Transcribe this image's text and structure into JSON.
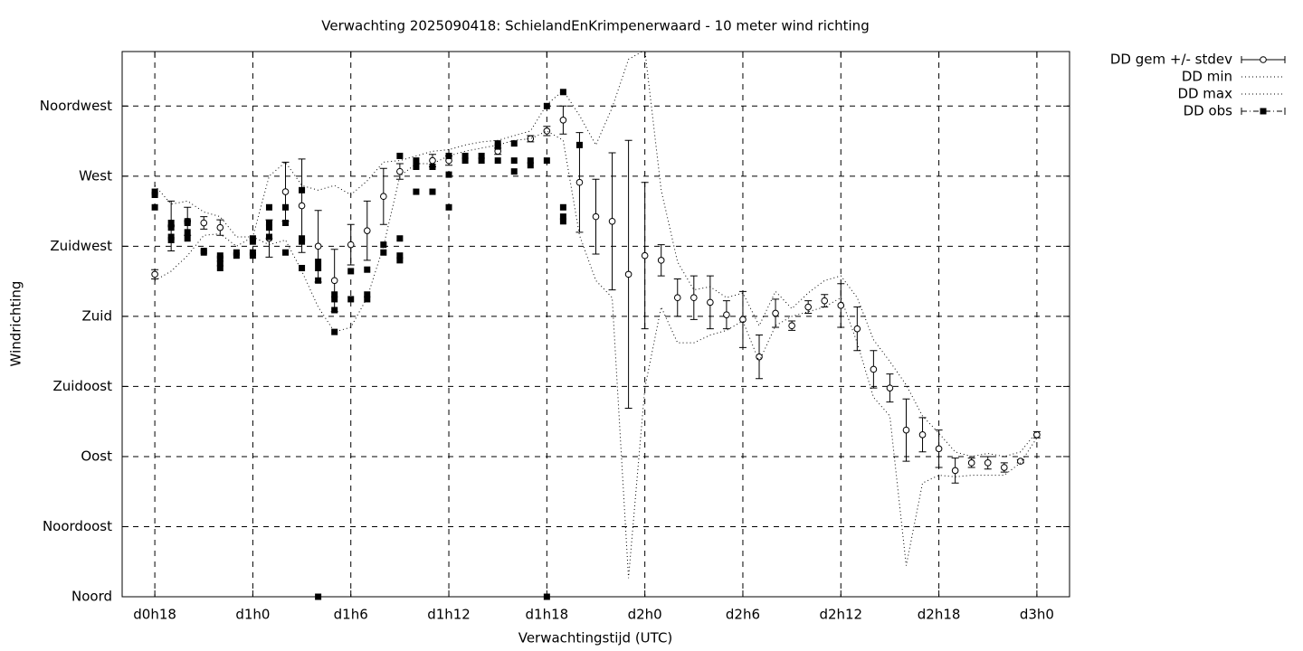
{
  "chart_data": {
    "type": "errorbar",
    "title": "Verwachting 2025090418: SchielandEnKrimpenerwaard - 10 meter wind richting",
    "xlabel": "Verwachtingstijd (UTC)",
    "ylabel": "Windrichting",
    "xlim": [
      16,
      74
    ],
    "xticks": [
      {
        "value": 18,
        "label": "d0h18"
      },
      {
        "value": 24,
        "label": "d1h0"
      },
      {
        "value": 30,
        "label": "d1h6"
      },
      {
        "value": 36,
        "label": "d1h12"
      },
      {
        "value": 42,
        "label": "d1h18"
      },
      {
        "value": 48,
        "label": "d2h0"
      },
      {
        "value": 54,
        "label": "d2h6"
      },
      {
        "value": 60,
        "label": "d2h12"
      },
      {
        "value": 66,
        "label": "d2h18"
      },
      {
        "value": 72,
        "label": "d3h0"
      }
    ],
    "ylim": [
      0,
      350
    ],
    "yticks": [
      {
        "value": 0,
        "label": "Noord"
      },
      {
        "value": 45,
        "label": "Noordoost"
      },
      {
        "value": 90,
        "label": "Oost"
      },
      {
        "value": 135,
        "label": "Zuidoost"
      },
      {
        "value": 180,
        "label": "Zuid"
      },
      {
        "value": 225,
        "label": "Zuidwest"
      },
      {
        "value": 270,
        "label": "West"
      },
      {
        "value": 315,
        "label": "Noordwest"
      }
    ],
    "grid": true,
    "series": [
      {
        "name": "DD gem +/- stdev",
        "style": "errorbar",
        "color": "#000000",
        "x": [
          18,
          19,
          20,
          21,
          22,
          23,
          24,
          25,
          26,
          27,
          28,
          29,
          30,
          31,
          32,
          33,
          34,
          35,
          36,
          37,
          38,
          39,
          40,
          41,
          42,
          43,
          44,
          45,
          46,
          47,
          48,
          49,
          50,
          51,
          52,
          53,
          54,
          55,
          56,
          57,
          58,
          59,
          60,
          61,
          62,
          63,
          64,
          65,
          66,
          67,
          68,
          69,
          70,
          71,
          72
        ],
        "values": [
          207,
          238,
          241,
          240,
          237,
          null,
          null,
          230,
          260,
          251,
          225,
          203,
          226,
          235,
          257,
          273,
          null,
          280,
          280,
          null,
          null,
          286,
          null,
          294,
          299,
          306,
          266,
          244,
          241,
          207,
          219,
          216,
          192,
          192,
          189,
          181,
          178,
          154,
          182,
          174,
          186,
          190,
          187,
          172,
          146,
          134,
          107,
          104,
          95,
          81,
          86,
          86,
          83,
          87,
          104
        ],
        "errors": [
          3,
          16,
          9,
          4,
          5,
          null,
          null,
          12,
          19,
          30,
          23,
          20,
          13,
          19,
          18,
          5,
          null,
          4,
          3,
          null,
          null,
          2,
          null,
          2,
          3,
          9,
          32,
          24,
          44,
          86,
          47,
          10,
          12,
          14,
          17,
          9,
          18,
          14,
          9,
          3,
          4,
          4,
          14,
          14,
          12,
          9,
          20,
          11,
          12,
          8,
          3,
          4,
          3,
          1,
          2
        ]
      },
      {
        "name": "DD min",
        "style": "dotted",
        "color": "#000000",
        "x": [
          18,
          19,
          20,
          21,
          22,
          23,
          24,
          25,
          26,
          27,
          28,
          29,
          30,
          31,
          32,
          33,
          34,
          35,
          36,
          37,
          38,
          39,
          40,
          41,
          42,
          43,
          44,
          45,
          46,
          47,
          48,
          49,
          50,
          51,
          52,
          53,
          54,
          55,
          56,
          57,
          58,
          59,
          60,
          61,
          62,
          63,
          64,
          65,
          66,
          67,
          68,
          69,
          70,
          71,
          72
        ],
        "values": [
          203,
          209,
          219,
          232,
          233,
          225,
          231,
          226,
          229,
          209,
          186,
          170,
          173,
          192,
          225,
          270,
          278,
          278,
          283,
          286,
          288,
          290,
          293,
          294,
          299,
          293,
          232,
          203,
          192,
          12,
          134,
          186,
          163,
          163,
          168,
          171,
          177,
          151,
          174,
          180,
          183,
          186,
          192,
          163,
          128,
          116,
          20,
          73,
          78,
          77,
          78,
          78,
          78,
          86,
          102
        ]
      },
      {
        "name": "DD max",
        "style": "dotted",
        "color": "#000000",
        "x": [
          18,
          19,
          20,
          21,
          22,
          23,
          24,
          25,
          26,
          27,
          28,
          29,
          30,
          31,
          32,
          33,
          34,
          35,
          36,
          37,
          38,
          39,
          40,
          41,
          42,
          43,
          44,
          45,
          46,
          47,
          48,
          49,
          50,
          51,
          52,
          53,
          54,
          55,
          56,
          57,
          58,
          59,
          60,
          61,
          62,
          63,
          64,
          65,
          66,
          67,
          68,
          69,
          70,
          71,
          72
        ],
        "values": [
          264,
          252,
          254,
          247,
          244,
          231,
          231,
          270,
          279,
          264,
          261,
          264,
          258,
          267,
          279,
          280,
          283,
          286,
          287,
          290,
          292,
          293,
          296,
          299,
          316,
          325,
          309,
          290,
          314,
          345,
          351,
          261,
          215,
          197,
          199,
          192,
          195,
          174,
          196,
          185,
          195,
          203,
          206,
          192,
          165,
          151,
          136,
          116,
          105,
          93,
          90,
          92,
          90,
          93,
          106
        ]
      },
      {
        "name": "DD obs",
        "style": "points",
        "color": "#000000",
        "x": [
          18,
          18,
          18,
          19,
          19,
          19,
          19,
          20,
          20,
          20,
          20,
          21,
          21,
          22,
          22,
          22,
          22,
          23,
          23,
          24,
          24,
          24,
          24,
          25,
          25,
          25,
          25,
          26,
          26,
          26,
          27,
          27,
          27,
          27,
          28,
          28,
          28,
          28,
          29,
          29,
          29,
          29,
          30,
          30,
          31,
          31,
          31,
          32,
          32,
          33,
          33,
          33,
          33,
          34,
          34,
          34,
          35,
          35,
          36,
          36,
          36,
          37,
          37,
          38,
          38,
          39,
          39,
          39,
          40,
          40,
          40,
          41,
          41,
          42,
          42,
          42,
          43,
          43,
          43,
          43,
          44
        ],
        "values": [
          260,
          258,
          250,
          240,
          237,
          231,
          229,
          241,
          240,
          234,
          230,
          222,
          221,
          219,
          217,
          214,
          211,
          221,
          219,
          230,
          228,
          221,
          219,
          250,
          240,
          237,
          231,
          250,
          240,
          221,
          261,
          230,
          228,
          211,
          215,
          211,
          203,
          0,
          194,
          191,
          184,
          170,
          209,
          191,
          210,
          194,
          191,
          226,
          221,
          283,
          230,
          219,
          216,
          280,
          276,
          260,
          276,
          260,
          283,
          271,
          250,
          283,
          280,
          283,
          280,
          291,
          289,
          280,
          291,
          280,
          273,
          280,
          277,
          315,
          280,
          0,
          324,
          250,
          244,
          241,
          290
        ]
      }
    ]
  }
}
